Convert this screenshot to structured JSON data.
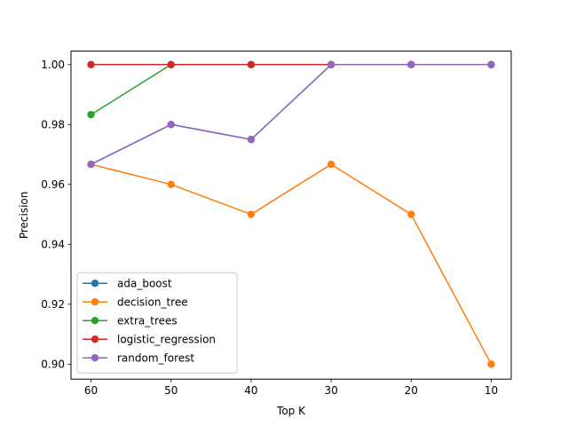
{
  "chart_data": {
    "type": "line",
    "xlabel": "Top K",
    "ylabel": "Precision",
    "x": [
      60,
      50,
      40,
      30,
      20,
      10
    ],
    "x_inverted": true,
    "ylim": [
      0.895,
      1.0045
    ],
    "yticks": [
      0.9,
      0.92,
      0.94,
      0.96,
      0.98,
      1.0
    ],
    "ytick_labels": [
      "0.90",
      "0.92",
      "0.94",
      "0.96",
      "0.98",
      "1.00"
    ],
    "xtick_labels": [
      "60",
      "50",
      "40",
      "30",
      "20",
      "10"
    ],
    "grid": false,
    "legend_position": "lower-left",
    "series": [
      {
        "name": "ada_boost",
        "color": "#1f77b4",
        "values": [
          0.9667,
          0.98,
          0.975,
          1.0,
          1.0,
          1.0
        ]
      },
      {
        "name": "decision_tree",
        "color": "#ff7f0e",
        "values": [
          0.9667,
          0.96,
          0.95,
          0.9667,
          0.95,
          0.9
        ]
      },
      {
        "name": "extra_trees",
        "color": "#2ca02c",
        "values": [
          0.9833,
          1.0,
          1.0,
          1.0,
          1.0,
          1.0
        ]
      },
      {
        "name": "logistic_regression",
        "color": "#d62728",
        "values": [
          1.0,
          1.0,
          1.0,
          1.0,
          1.0,
          1.0
        ]
      },
      {
        "name": "random_forest",
        "color": "#9467bd",
        "values": [
          0.9667,
          0.98,
          0.975,
          1.0,
          1.0,
          1.0
        ]
      }
    ]
  }
}
